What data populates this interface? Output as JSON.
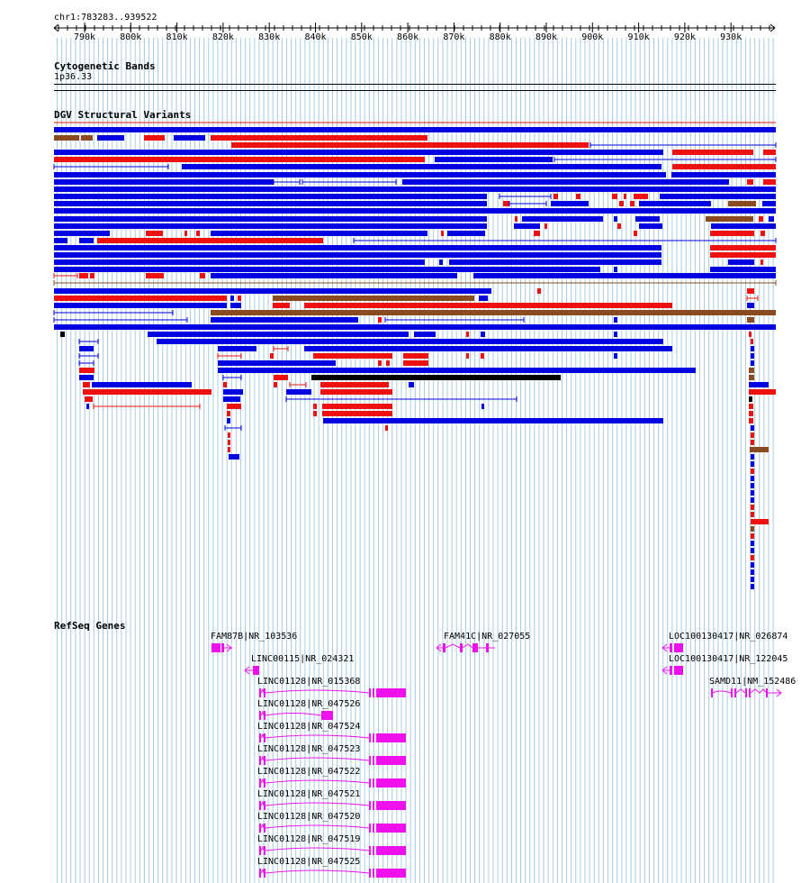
{
  "ruler": {
    "region": "chr1:783283..939522",
    "ticks": [
      "790k",
      "800k",
      "810k",
      "820k",
      "830k",
      "840k",
      "850k",
      "860k",
      "870k",
      "880k",
      "890k",
      "900k",
      "910k",
      "920k",
      "930k"
    ]
  },
  "tracks": {
    "cytoband": {
      "title": "Cytogenetic Bands",
      "band": "1p36.33"
    },
    "dgv": {
      "title": "DGV Structural Variants"
    },
    "refseq": {
      "title": "RefSeq Genes"
    }
  },
  "colors": {
    "gain": "#0000e0",
    "loss": "#ee1111",
    "inversion": "#8b4a1f",
    "complex": "#000000",
    "gene": "#ee11ee",
    "grid": "#a8cce0"
  },
  "genes": [
    {
      "label": "FAM87B|NR_103536"
    },
    {
      "label": "LINC00115|NR_024321"
    },
    {
      "label": "LINC01128|NR_015368"
    },
    {
      "label": "LINC01128|NR_047526"
    },
    {
      "label": "LINC01128|NR_047524"
    },
    {
      "label": "LINC01128|NR_047523"
    },
    {
      "label": "LINC01128|NR_047522"
    },
    {
      "label": "LINC01128|NR_047521"
    },
    {
      "label": "LINC01128|NR_047520"
    },
    {
      "label": "LINC01128|NR_047519"
    },
    {
      "label": "LINC01128|NR_047525"
    },
    {
      "label": "FAM41C|NR_027055"
    },
    {
      "label": "LOC100130417|NR_026874"
    },
    {
      "label": "LOC100130417|NR_122045"
    },
    {
      "label": "SAMD11|NM_152486"
    }
  ]
}
